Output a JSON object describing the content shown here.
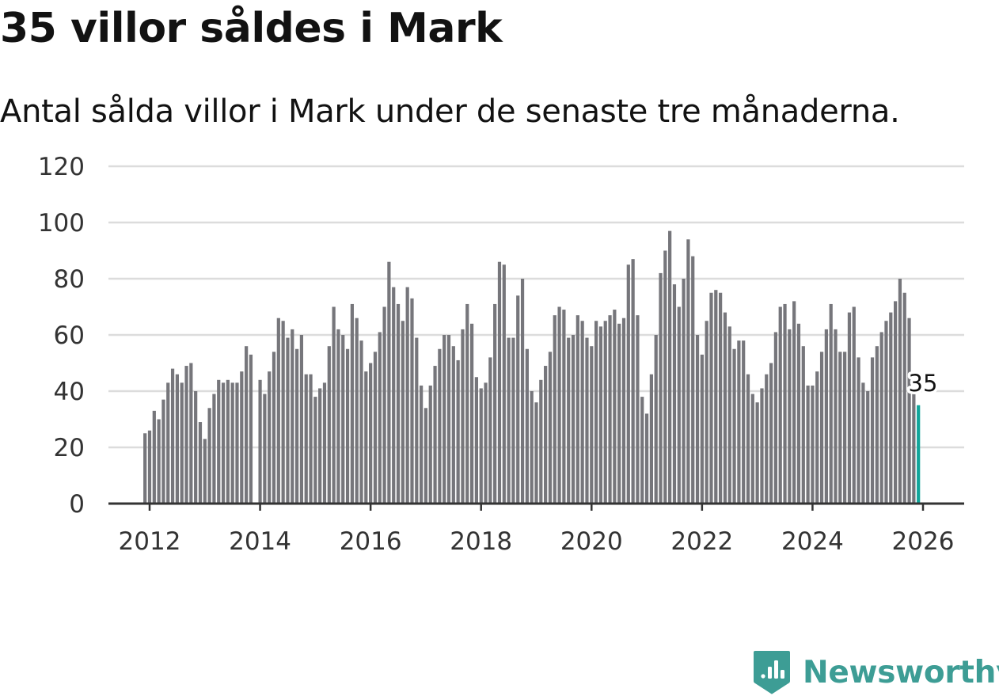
{
  "headline": "35 villor såldes i Mark",
  "subtitle": "Antal sålda villor i Mark under de senaste tre månaderna.",
  "brand": {
    "name": "Newsworthy",
    "logo_icon": "newsworthy-logo-icon",
    "color": "#3d9d95"
  },
  "colors": {
    "bar": "#76767b",
    "highlight": "#11a59a",
    "grid": "#dcdcdc",
    "axis": "#333333"
  },
  "chart_data": {
    "type": "bar",
    "title": "35 villor såldes i Mark",
    "subtitle": "Antal sålda villor i Mark under de senaste tre månaderna.",
    "xlabel": "",
    "ylabel": "",
    "ylim": [
      0,
      120
    ],
    "y_ticks": [
      "0",
      "20",
      "40",
      "60",
      "80",
      "100",
      "120"
    ],
    "x_ticks": [
      "2012",
      "2014",
      "2016",
      "2018",
      "2020",
      "2022",
      "2024",
      "2026"
    ],
    "x_range_years": [
      2011.25,
      2026.75
    ],
    "start": "2011-12",
    "end": "2026-01",
    "gaps": [
      "2013-12"
    ],
    "grid": true,
    "legend": "none",
    "annotation": {
      "label": "35",
      "date": "2026-01",
      "value": 35
    },
    "values": [
      25,
      26,
      33,
      30,
      37,
      43,
      48,
      46,
      43,
      49,
      50,
      40,
      29,
      23,
      34,
      39,
      44,
      43,
      44,
      43,
      43,
      47,
      56,
      53,
      null,
      44,
      39,
      47,
      54,
      66,
      65,
      59,
      62,
      55,
      60,
      46,
      46,
      38,
      41,
      43,
      56,
      70,
      62,
      60,
      55,
      71,
      66,
      58,
      47,
      50,
      54,
      61,
      70,
      86,
      77,
      71,
      65,
      77,
      73,
      59,
      42,
      34,
      42,
      49,
      55,
      60,
      60,
      56,
      51,
      62,
      71,
      64,
      45,
      41,
      43,
      52,
      71,
      86,
      85,
      59,
      59,
      74,
      80,
      55,
      40,
      36,
      44,
      49,
      54,
      67,
      70,
      69,
      59,
      60,
      67,
      65,
      59,
      56,
      65,
      63,
      65,
      67,
      69,
      64,
      66,
      85,
      87,
      67,
      38,
      32,
      46,
      60,
      82,
      90,
      97,
      78,
      70,
      80,
      94,
      88,
      60,
      53,
      65,
      75,
      76,
      75,
      68,
      63,
      55,
      58,
      58,
      46,
      39,
      36,
      41,
      46,
      50,
      61,
      70,
      71,
      62,
      72,
      64,
      56,
      42,
      42,
      47,
      54,
      62,
      71,
      62,
      54,
      54,
      68,
      70,
      52,
      43,
      40,
      52,
      56,
      61,
      65,
      68,
      72,
      80,
      75,
      66,
      40,
      35
    ]
  }
}
